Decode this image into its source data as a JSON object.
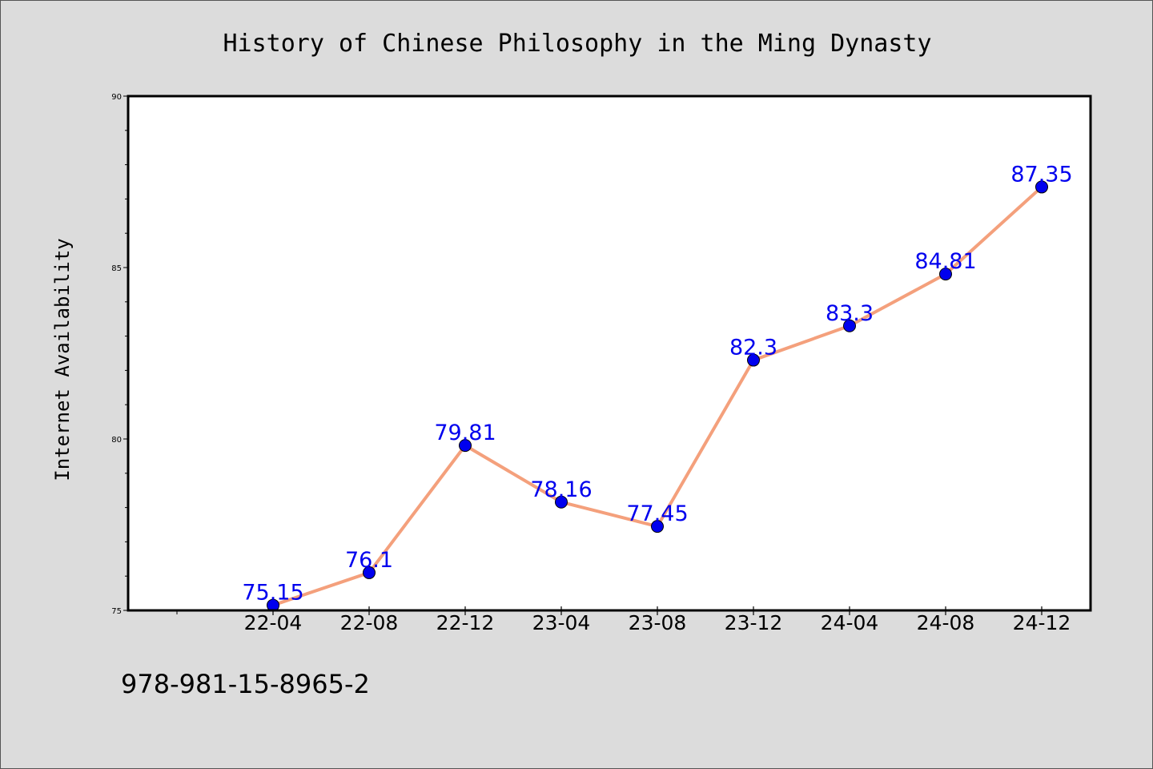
{
  "chart_data": {
    "type": "line",
    "title": "History of Chinese Philosophy in the Ming Dynasty",
    "ylabel": "Internet Availability",
    "xlabel": "",
    "categories": [
      "22-04",
      "22-08",
      "22-12",
      "23-04",
      "23-08",
      "23-12",
      "24-04",
      "24-08",
      "24-12"
    ],
    "values": [
      75.15,
      76.1,
      79.81,
      78.16,
      77.45,
      82.3,
      83.3,
      84.81,
      87.35
    ],
    "value_labels": [
      "75.15",
      "76.1",
      "79.81",
      "78.16",
      "77.45",
      "82.3",
      "83.3",
      "84.81",
      "87.35"
    ],
    "ylim": [
      75,
      90
    ],
    "yticks": [
      75,
      80,
      85,
      90
    ],
    "ytick_labels": [
      "75",
      "80",
      "85",
      "90"
    ],
    "grid": false,
    "line_color": "#f4a07c",
    "marker_color": "#0000ee",
    "label_color": "#0000ee"
  },
  "footnote": "978-981-15-8965-2"
}
